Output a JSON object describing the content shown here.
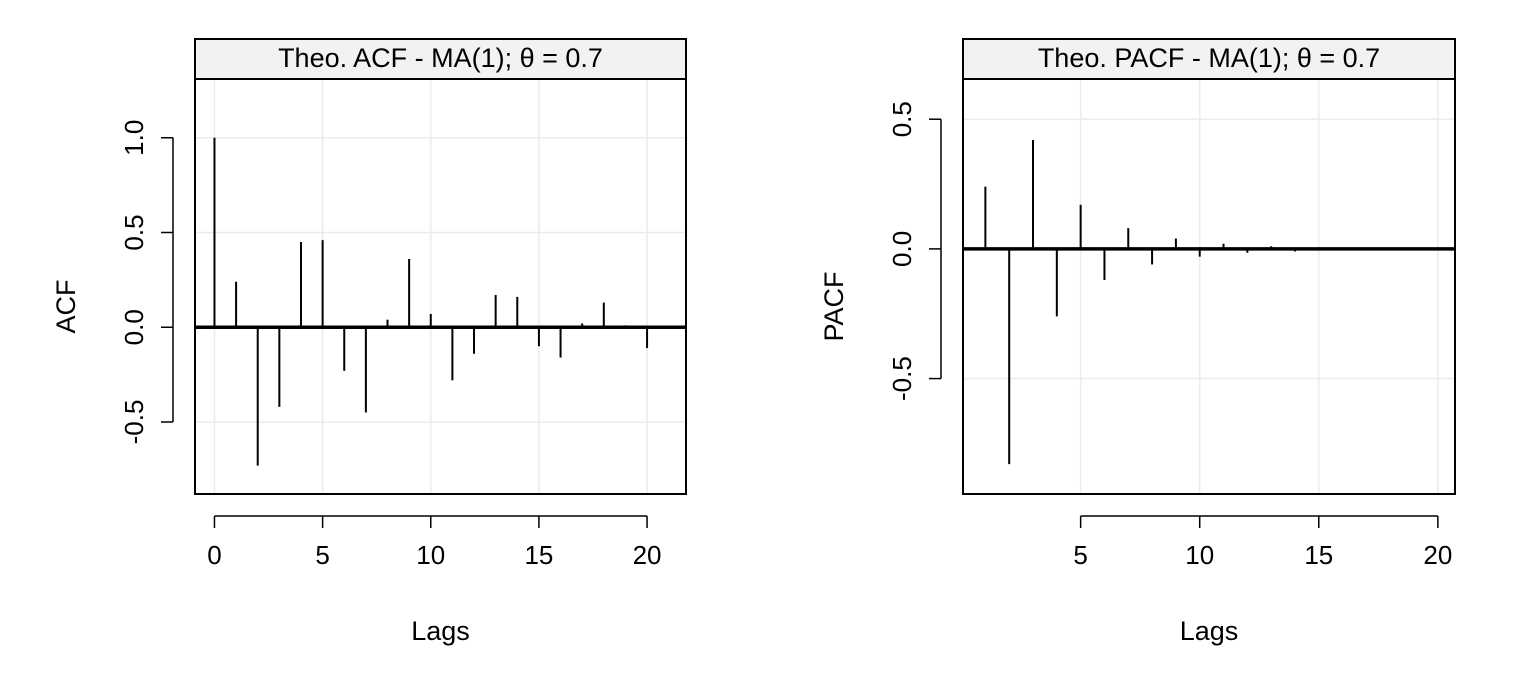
{
  "chart_data": [
    {
      "type": "bar",
      "title": "Theo. ACF - MA(1); θ = 0.7",
      "xlabel": "Lags",
      "ylabel": "ACF",
      "xlim": [
        -0.9,
        21.8
      ],
      "ylim": [
        -0.88,
        1.31
      ],
      "xticks": [
        0,
        5,
        10,
        15,
        20
      ],
      "yticks": [
        -0.5,
        0.0,
        0.5,
        1.0
      ],
      "ytick_labels": [
        "-0.5",
        "0.0",
        "0.5",
        "1.0"
      ],
      "grid": true,
      "x": [
        0,
        1,
        2,
        3,
        4,
        5,
        6,
        7,
        8,
        9,
        10,
        11,
        12,
        13,
        14,
        15,
        16,
        17,
        18,
        19,
        20
      ],
      "values": [
        1.0,
        0.24,
        -0.73,
        -0.42,
        0.45,
        0.46,
        -0.23,
        -0.45,
        0.04,
        0.36,
        0.07,
        -0.28,
        -0.14,
        0.17,
        0.16,
        -0.1,
        -0.16,
        0.02,
        0.13,
        0.01,
        -0.11
      ]
    },
    {
      "type": "bar",
      "title": "Theo. PACF - MA(1); θ = 0.7",
      "xlabel": "Lags",
      "ylabel": "PACF",
      "xlim": [
        0.06,
        20.72
      ],
      "ylim": [
        -0.945,
        0.655
      ],
      "xticks": [
        5,
        10,
        15,
        20
      ],
      "yticks": [
        -0.5,
        0.0,
        0.5
      ],
      "ytick_labels": [
        "-0.5",
        "0.0",
        "0.5"
      ],
      "grid": true,
      "x": [
        1,
        2,
        3,
        4,
        5,
        6,
        7,
        8,
        9,
        10,
        11,
        12,
        13,
        14
      ],
      "values": [
        0.24,
        -0.83,
        0.42,
        -0.26,
        0.17,
        -0.12,
        0.08,
        -0.06,
        0.04,
        -0.03,
        0.02,
        -0.015,
        0.01,
        -0.01
      ]
    }
  ]
}
